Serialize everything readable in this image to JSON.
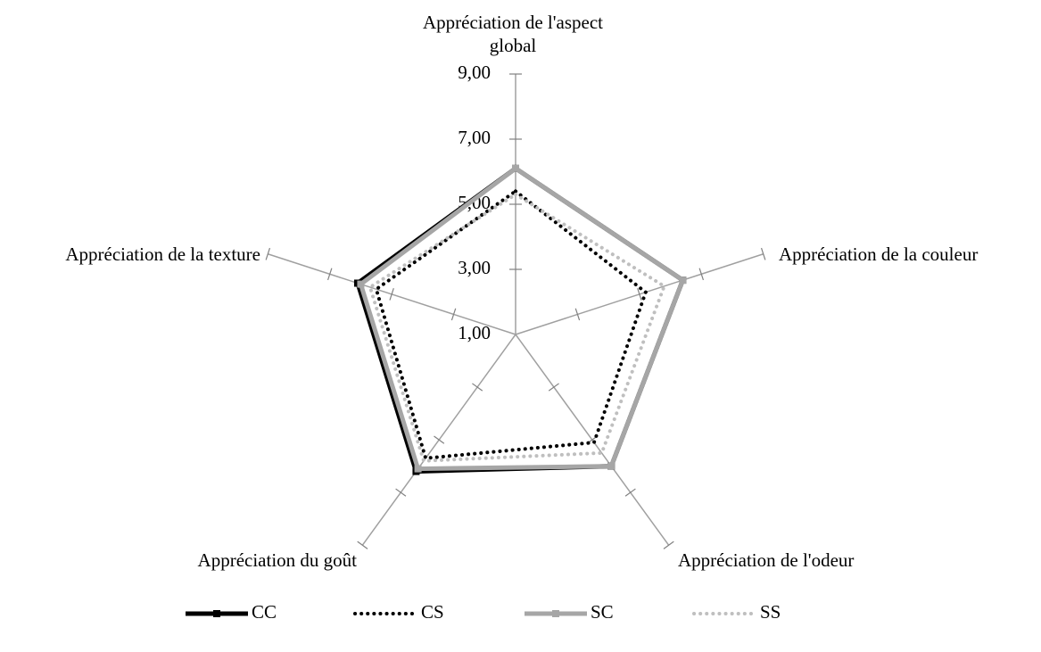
{
  "chart_data": {
    "type": "radar",
    "categories": [
      "Appréciation de l'aspect global",
      "Appréciation de la couleur",
      "Appréciation de l'odeur",
      "Appréciation du goût",
      "Appréciation de la texture"
    ],
    "ylim": [
      1,
      9
    ],
    "yticks": [
      {
        "value": 1,
        "label": "1,00"
      },
      {
        "value": 3,
        "label": "3,00"
      },
      {
        "value": 5,
        "label": "5,00"
      },
      {
        "value": 7,
        "label": "7,00"
      },
      {
        "value": 9,
        "label": "9,00"
      }
    ],
    "legend": "bottom",
    "series": [
      {
        "name": "CC",
        "color": "#000000",
        "line_style": "solid",
        "marker": "square",
        "values": [
          6.1,
          6.4,
          6.0,
          6.2,
          6.1
        ]
      },
      {
        "name": "CS",
        "color": "#000000",
        "line_style": "dotted",
        "values": [
          5.4,
          5.2,
          5.1,
          5.7,
          5.5
        ]
      },
      {
        "name": "SC",
        "color": "#a6a6a6",
        "line_style": "solid",
        "marker": "square",
        "values": [
          6.1,
          6.4,
          6.0,
          6.1,
          6.0
        ]
      },
      {
        "name": "SS",
        "color": "#bfbfbf",
        "line_style": "dotted",
        "values": [
          5.3,
          5.8,
          5.5,
          5.8,
          5.7
        ]
      }
    ]
  }
}
